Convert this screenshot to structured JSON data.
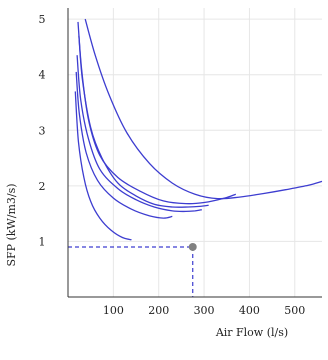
{
  "chart_data": {
    "type": "line",
    "title": "",
    "xlabel": "Air Flow (l/s)",
    "ylabel": "SFP (kW/m3/s)",
    "xlim": [
      0,
      560
    ],
    "ylim": [
      0,
      5.2
    ],
    "x_ticks": [
      100,
      200,
      300,
      400,
      500
    ],
    "y_ticks": [
      1,
      2,
      3,
      4,
      5
    ],
    "grid": true,
    "legend": "none",
    "colors": {
      "series": "#3d3dd0",
      "grid": "#e6e6e6",
      "axis": "#333333",
      "marker": "#808080"
    },
    "series": [
      {
        "x": [
          38,
          60,
          90,
          130,
          180,
          230,
          280,
          330,
          380,
          430,
          480,
          530,
          560
        ],
        "y": [
          5.0,
          4.35,
          3.65,
          2.95,
          2.4,
          2.05,
          1.85,
          1.77,
          1.8,
          1.86,
          1.93,
          2.01,
          2.08
        ]
      },
      {
        "x": [
          22,
          30,
          45,
          70,
          110,
          160,
          210,
          260,
          300,
          345,
          370
        ],
        "y": [
          4.95,
          4.1,
          3.2,
          2.55,
          2.15,
          1.9,
          1.73,
          1.68,
          1.7,
          1.78,
          1.85
        ]
      },
      {
        "x": [
          24,
          32,
          50,
          75,
          110,
          150,
          190,
          230,
          265,
          290,
          310
        ],
        "y": [
          4.7,
          3.9,
          3.05,
          2.5,
          2.05,
          1.82,
          1.67,
          1.62,
          1.62,
          1.63,
          1.65
        ]
      },
      {
        "x": [
          20,
          28,
          45,
          70,
          110,
          150,
          190,
          230,
          260,
          280,
          295
        ],
        "y": [
          4.35,
          3.55,
          2.85,
          2.3,
          1.95,
          1.75,
          1.62,
          1.55,
          1.54,
          1.55,
          1.57
        ]
      },
      {
        "x": [
          18,
          25,
          40,
          65,
          100,
          140,
          180,
          210,
          230
        ],
        "y": [
          4.05,
          3.3,
          2.6,
          2.1,
          1.78,
          1.58,
          1.46,
          1.42,
          1.45
        ]
      },
      {
        "x": [
          16,
          23,
          35,
          50,
          70,
          95,
          120,
          140
        ],
        "y": [
          3.7,
          2.8,
          2.15,
          1.72,
          1.42,
          1.2,
          1.07,
          1.03
        ]
      }
    ],
    "operating_point": {
      "x": 275,
      "y": 0.9
    }
  }
}
